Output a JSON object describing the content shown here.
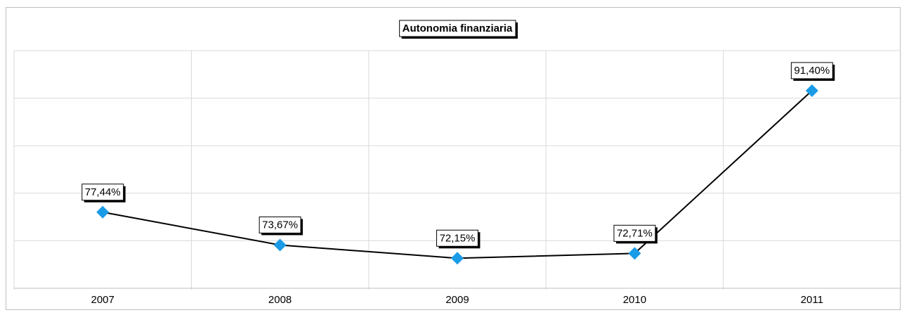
{
  "chart_data": {
    "type": "line",
    "title": "Autonomia finanziaria",
    "categories": [
      "2007",
      "2008",
      "2009",
      "2010",
      "2011"
    ],
    "series": [
      {
        "name": "Autonomia finanziaria",
        "color": "#1a9be6",
        "line_color": "#000000",
        "values": [
          77.44,
          73.67,
          72.15,
          72.71,
          91.4
        ],
        "value_labels": [
          "77,44%",
          "73,67%",
          "72,15%",
          "72,71%",
          "91,40%"
        ]
      }
    ],
    "ylim": [
      68.7,
      96
    ],
    "yticks": [
      68.7,
      74.16,
      79.62,
      85.08,
      90.54,
      96
    ],
    "grid": true
  }
}
